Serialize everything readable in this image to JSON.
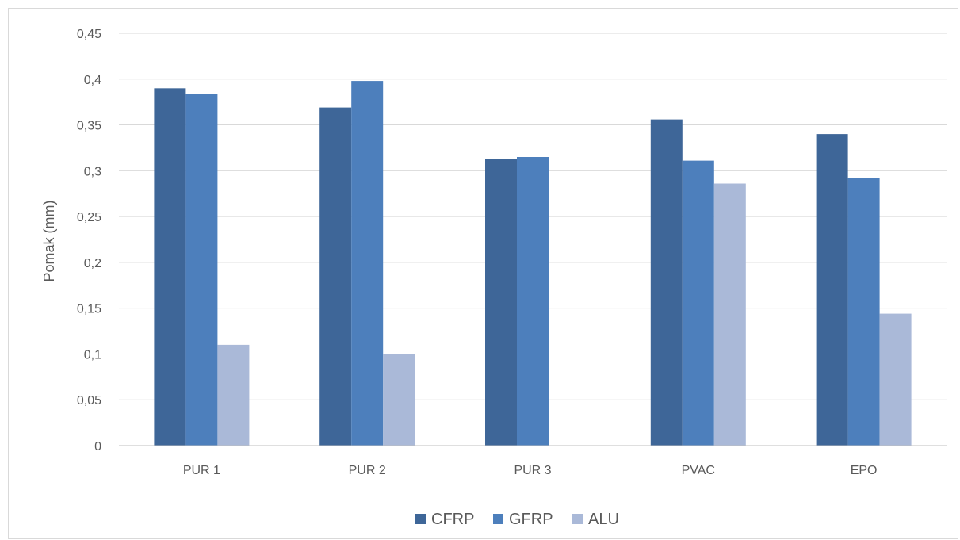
{
  "chart_data": {
    "type": "bar",
    "title": "",
    "xlabel": "",
    "ylabel": "Pomak (mm)",
    "categories": [
      "PUR 1",
      "PUR 2",
      "PUR 3",
      "PVAC",
      "EPO"
    ],
    "series": [
      {
        "name": "CFRP",
        "color": "#3e6698",
        "values": [
          0.39,
          0.369,
          0.313,
          0.356,
          0.34
        ]
      },
      {
        "name": "GFRP",
        "color": "#4d7fbc",
        "values": [
          0.384,
          0.398,
          0.315,
          0.311,
          0.292
        ]
      },
      {
        "name": "ALU",
        "color": "#aab9d8",
        "values": [
          0.11,
          0.1,
          null,
          0.286,
          0.144
        ]
      }
    ],
    "ylim": [
      0,
      0.45
    ],
    "yticks": [
      0,
      0.05,
      0.1,
      0.15,
      0.2,
      0.25,
      0.3,
      0.35,
      0.4,
      0.45
    ],
    "ytick_labels": [
      "0",
      "0,05",
      "0,1",
      "0,15",
      "0,2",
      "0,25",
      "0,3",
      "0,35",
      "0,4",
      "0,45"
    ],
    "grid": true,
    "legend_position": "bottom"
  }
}
